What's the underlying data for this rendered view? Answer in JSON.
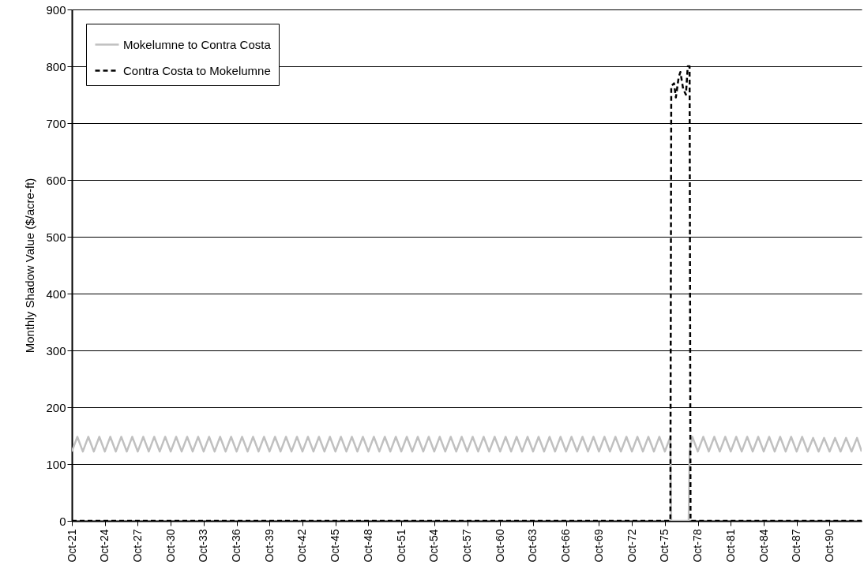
{
  "chart_data": {
    "type": "line",
    "ylabel": "Monthly Shadow Value ($/acre-ft)",
    "xlim": [
      "1921-10",
      "1993-09"
    ],
    "ylim": [
      0,
      900
    ],
    "yticks": [
      0,
      100,
      200,
      300,
      400,
      500,
      600,
      700,
      800,
      900
    ],
    "xticks": [
      {
        "value": "1921-10",
        "label": "Oct-21"
      },
      {
        "value": "1924-10",
        "label": "Oct-24"
      },
      {
        "value": "1927-10",
        "label": "Oct-27"
      },
      {
        "value": "1930-10",
        "label": "Oct-30"
      },
      {
        "value": "1933-10",
        "label": "Oct-33"
      },
      {
        "value": "1936-10",
        "label": "Oct-36"
      },
      {
        "value": "1939-10",
        "label": "Oct-39"
      },
      {
        "value": "1942-10",
        "label": "Oct-42"
      },
      {
        "value": "1945-10",
        "label": "Oct-45"
      },
      {
        "value": "1948-10",
        "label": "Oct-48"
      },
      {
        "value": "1951-10",
        "label": "Oct-51"
      },
      {
        "value": "1954-10",
        "label": "Oct-54"
      },
      {
        "value": "1957-10",
        "label": "Oct-57"
      },
      {
        "value": "1960-10",
        "label": "Oct-60"
      },
      {
        "value": "1963-10",
        "label": "Oct-63"
      },
      {
        "value": "1966-10",
        "label": "Oct-66"
      },
      {
        "value": "1969-10",
        "label": "Oct-69"
      },
      {
        "value": "1972-10",
        "label": "Oct-72"
      },
      {
        "value": "1975-10",
        "label": "Oct-75"
      },
      {
        "value": "1978-10",
        "label": "Oct-78"
      },
      {
        "value": "1981-10",
        "label": "Oct-81"
      },
      {
        "value": "1984-10",
        "label": "Oct-84"
      },
      {
        "value": "1987-10",
        "label": "Oct-87"
      },
      {
        "value": "1990-10",
        "label": "Oct-90"
      }
    ],
    "grid": "y",
    "legend": "top left",
    "marker": "none",
    "series": [
      {
        "name": "Mokelumne to Contra Costa",
        "color": "#c0c0c0",
        "line_style": "solid",
        "x": [
          "1921-10",
          "1922-04",
          "1922-10",
          "1923-04",
          "1923-10",
          "1924-04",
          "1924-10",
          "1925-04",
          "1925-10",
          "1926-04",
          "1926-10",
          "1927-04",
          "1927-10",
          "1928-04",
          "1928-10",
          "1929-04",
          "1929-10",
          "1930-04",
          "1930-10",
          "1931-04",
          "1931-10",
          "1932-04",
          "1932-10",
          "1933-04",
          "1933-10",
          "1934-04",
          "1934-10",
          "1935-04",
          "1935-10",
          "1936-04",
          "1936-10",
          "1937-04",
          "1937-10",
          "1938-04",
          "1938-10",
          "1939-04",
          "1939-10",
          "1940-04",
          "1940-10",
          "1941-04",
          "1941-10",
          "1942-04",
          "1942-10",
          "1943-04",
          "1943-10",
          "1944-04",
          "1944-10",
          "1945-04",
          "1945-10",
          "1946-04",
          "1946-10",
          "1947-04",
          "1947-10",
          "1948-04",
          "1948-10",
          "1949-04",
          "1949-10",
          "1950-04",
          "1950-10",
          "1951-04",
          "1951-10",
          "1952-04",
          "1952-10",
          "1953-04",
          "1953-10",
          "1954-04",
          "1954-10",
          "1955-04",
          "1955-10",
          "1956-04",
          "1956-10",
          "1957-04",
          "1957-10",
          "1958-04",
          "1958-10",
          "1959-04",
          "1959-10",
          "1960-04",
          "1960-10",
          "1961-04",
          "1961-10",
          "1962-04",
          "1962-10",
          "1963-04",
          "1963-10",
          "1964-04",
          "1964-10",
          "1965-04",
          "1965-10",
          "1966-04",
          "1966-10",
          "1967-04",
          "1967-10",
          "1968-04",
          "1968-10",
          "1969-04",
          "1969-10",
          "1970-04",
          "1970-10",
          "1971-04",
          "1971-10",
          "1972-04",
          "1972-10",
          "1973-04",
          "1973-10",
          "1974-04",
          "1974-10",
          "1975-04",
          "1975-10",
          "1976-04",
          "1976-05",
          "1977-12",
          "1978-01",
          "1978-04",
          "1978-10",
          "1979-04",
          "1979-10",
          "1980-04",
          "1980-10",
          "1981-04",
          "1981-10",
          "1982-04",
          "1982-10",
          "1983-04",
          "1983-10",
          "1984-04",
          "1984-10",
          "1985-04",
          "1985-10",
          "1986-04",
          "1986-10",
          "1987-04",
          "1987-10",
          "1988-04",
          "1988-10",
          "1989-04",
          "1989-10",
          "1990-04",
          "1990-10",
          "1991-04",
          "1991-10",
          "1992-04",
          "1992-10",
          "1993-04",
          "1993-09"
        ],
        "values": [
          122,
          148,
          122,
          148,
          122,
          148,
          122,
          148,
          122,
          148,
          122,
          148,
          122,
          148,
          122,
          148,
          122,
          148,
          122,
          148,
          122,
          148,
          122,
          148,
          122,
          148,
          122,
          148,
          122,
          148,
          122,
          148,
          122,
          148,
          122,
          148,
          122,
          148,
          122,
          148,
          122,
          148,
          122,
          148,
          122,
          148,
          122,
          148,
          122,
          148,
          122,
          148,
          122,
          148,
          122,
          148,
          122,
          148,
          122,
          148,
          122,
          148,
          122,
          148,
          122,
          148,
          122,
          148,
          122,
          148,
          122,
          148,
          122,
          148,
          122,
          148,
          122,
          148,
          122,
          148,
          122,
          148,
          122,
          148,
          122,
          148,
          122,
          148,
          122,
          148,
          122,
          148,
          122,
          148,
          122,
          148,
          122,
          148,
          122,
          148,
          122,
          148,
          122,
          148,
          122,
          148,
          122,
          148,
          122,
          148,
          0,
          0,
          122,
          148,
          122,
          148,
          122,
          148,
          122,
          148,
          122,
          148,
          122,
          148,
          122,
          148,
          122,
          148,
          122,
          148,
          122,
          148,
          122,
          148,
          122,
          146,
          122,
          146,
          122,
          146,
          122,
          146,
          122,
          146,
          122
        ]
      },
      {
        "name": "Contra Costa to Mokelumne",
        "color": "#000000",
        "line_style": "dashed",
        "x": [
          "1921-10",
          "1976-04",
          "1976-05",
          "1976-08",
          "1976-10",
          "1977-01",
          "1977-03",
          "1977-06",
          "1977-09",
          "1977-11",
          "1978-01",
          "1978-02",
          "1993-09"
        ],
        "values": [
          0,
          0,
          765,
          770,
          745,
          780,
          790,
          760,
          750,
          800,
          800,
          0,
          0
        ]
      }
    ]
  }
}
